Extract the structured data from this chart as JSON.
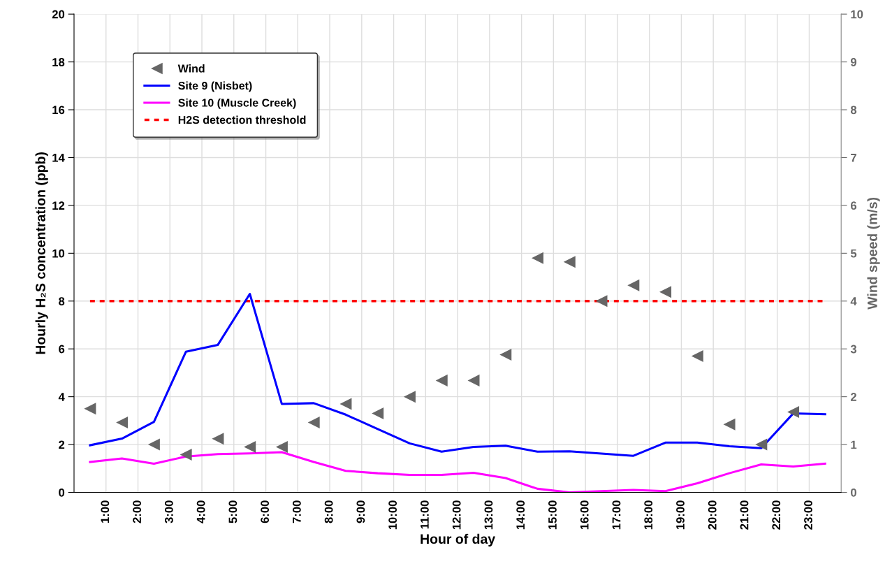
{
  "chart_data": {
    "type": "line",
    "xlabel": "Hour of day",
    "ylabel": "Hourly H₂S concentration (ppb)",
    "y2label": "Wind speed (m/s)",
    "x": [
      0.5,
      1.5,
      2.5,
      3.5,
      4.5,
      5.5,
      6.5,
      7.5,
      8.5,
      9.5,
      10.5,
      11.5,
      12.5,
      13.5,
      14.5,
      15.5,
      16.5,
      17.5,
      18.5,
      19.5,
      20.5,
      21.5,
      22.5,
      23.5
    ],
    "xlim": [
      0,
      24
    ],
    "xticks": [
      {
        "value": 1,
        "label": "1:00"
      },
      {
        "value": 2,
        "label": "2:00"
      },
      {
        "value": 3,
        "label": "3:00"
      },
      {
        "value": 4,
        "label": "4:00"
      },
      {
        "value": 5,
        "label": "5:00"
      },
      {
        "value": 6,
        "label": "6:00"
      },
      {
        "value": 7,
        "label": "7:00"
      },
      {
        "value": 8,
        "label": "8:00"
      },
      {
        "value": 9,
        "label": "9:00"
      },
      {
        "value": 10,
        "label": "10:00"
      },
      {
        "value": 11,
        "label": "11:00"
      },
      {
        "value": 12,
        "label": "12:00"
      },
      {
        "value": 13,
        "label": "13:00"
      },
      {
        "value": 14,
        "label": "14:00"
      },
      {
        "value": 15,
        "label": "15:00"
      },
      {
        "value": 16,
        "label": "16:00"
      },
      {
        "value": 17,
        "label": "17:00"
      },
      {
        "value": 18,
        "label": "18:00"
      },
      {
        "value": 19,
        "label": "19:00"
      },
      {
        "value": 20,
        "label": "20:00"
      },
      {
        "value": 21,
        "label": "21:00"
      },
      {
        "value": 22,
        "label": "22:00"
      },
      {
        "value": 23,
        "label": "23:00"
      }
    ],
    "ylim": [
      0,
      20
    ],
    "yticks": [
      0,
      2,
      4,
      6,
      8,
      10,
      12,
      14,
      16,
      18,
      20
    ],
    "y2lim": [
      0,
      10
    ],
    "y2ticks": [
      0,
      1,
      2,
      3,
      4,
      5,
      6,
      7,
      8,
      9,
      10
    ],
    "series": [
      {
        "name": "Wind",
        "type": "scatter",
        "axis": "y2",
        "marker": "triangle",
        "color": "#666666",
        "values": [
          1.75,
          1.46,
          1.0,
          0.79,
          1.12,
          0.95,
          0.95,
          1.46,
          1.85,
          1.65,
          2.0,
          2.34,
          2.34,
          2.88,
          4.9,
          4.82,
          4.0,
          4.33,
          4.19,
          2.85,
          1.42,
          1.0,
          1.68,
          null
        ]
      },
      {
        "name": "Site 9 (Nisbet)",
        "color": "#0000ff",
        "values": [
          1.97,
          2.25,
          2.95,
          5.88,
          6.17,
          8.3,
          3.7,
          3.73,
          3.25,
          2.65,
          2.05,
          1.7,
          1.9,
          1.95,
          1.7,
          1.72,
          1.62,
          1.53,
          2.08,
          2.08,
          1.93,
          1.85,
          3.3,
          3.27
        ]
      },
      {
        "name": "Site 10 (Muscle Creek)",
        "color": "#ff00ff",
        "values": [
          1.27,
          1.42,
          1.2,
          1.5,
          1.6,
          1.63,
          1.68,
          1.27,
          0.9,
          0.8,
          0.73,
          0.73,
          0.82,
          0.6,
          0.15,
          0.0,
          0.05,
          0.1,
          0.05,
          0.38,
          0.8,
          1.17,
          1.08,
          1.2
        ]
      }
    ],
    "ref_lines": [
      {
        "axis": "y",
        "value": 8,
        "label": "H2S detection threshold",
        "color": "#ff0000",
        "line_style": "dashed"
      }
    ],
    "grid": true,
    "legend": "top left"
  }
}
